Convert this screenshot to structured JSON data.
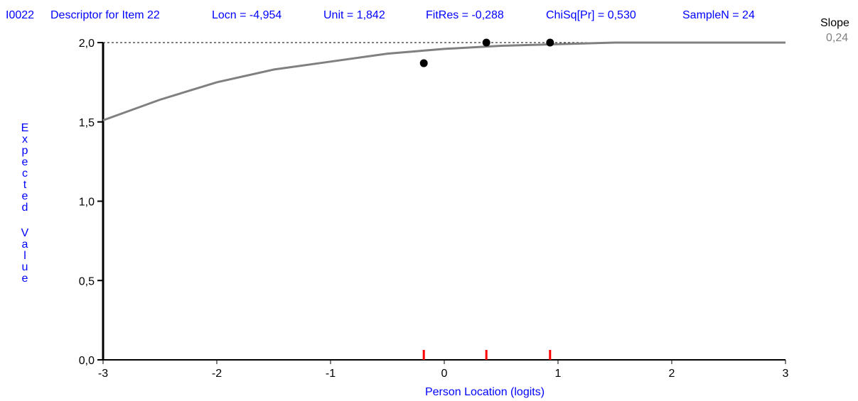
{
  "header": {
    "item_id": "I0022",
    "descriptor": "Descriptor for Item 22",
    "locn": "Locn = -4,954",
    "unit": "Unit = 1,842",
    "fitres": "FitRes = -0,288",
    "chisq": "ChiSq[Pr] = 0,530",
    "samplen": "SampleN = 24"
  },
  "slope": {
    "label": "Slope",
    "value": "0,24"
  },
  "colors": {
    "text": "#0000ff",
    "curve": "#808080",
    "tick_marks": "#ff0000",
    "axis": "#000000"
  },
  "chart_data": {
    "type": "line",
    "xlabel": "Person Location (logits)",
    "ylabel": "Expected Value",
    "xlim": [
      -3,
      3
    ],
    "ylim": [
      0,
      2
    ],
    "x_ticks": [
      -3,
      -2,
      -1,
      0,
      1,
      2,
      3
    ],
    "x_tick_labels": [
      "-3",
      "-2",
      "-1",
      "0",
      "1",
      "2",
      "3"
    ],
    "y_ticks": [
      0,
      0.5,
      1,
      1.5,
      2
    ],
    "y_tick_labels": [
      "0,0",
      "0,5",
      "1,0",
      "1,5",
      "2,0"
    ],
    "max_score_line": 2.0,
    "curve": {
      "x": [
        -3,
        -2.5,
        -2,
        -1.5,
        -1,
        -0.5,
        0,
        0.5,
        1,
        1.5,
        2,
        3
      ],
      "y": [
        1.51,
        1.64,
        1.75,
        1.83,
        1.88,
        1.93,
        1.96,
        1.98,
        1.99,
        2.0,
        2.0,
        2.0
      ]
    },
    "observed": {
      "x": [
        -0.18,
        0.37,
        0.93
      ],
      "y": [
        1.87,
        2.0,
        2.0
      ]
    },
    "class_interval_marks": [
      -0.18,
      0.37,
      0.93
    ],
    "grid": false
  }
}
